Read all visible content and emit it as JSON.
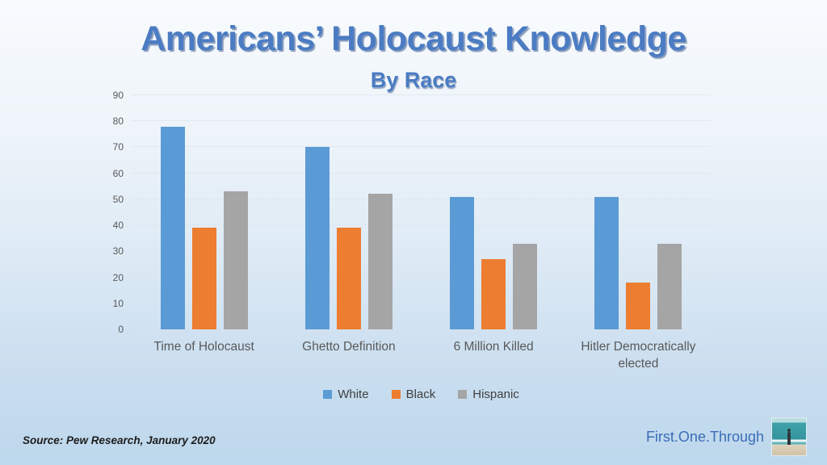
{
  "slide": {
    "title": "Americans’ Holocaust Knowledge",
    "subtitle": "By Race",
    "source": "Source: Pew Research, January 2020",
    "watermark": "First.One.Through"
  },
  "colors": {
    "title_blue": "#4b7cc3",
    "axis_text": "#595959",
    "legend_text": "#404040",
    "watermark_blue": "#3b6db8",
    "gridline": "#dde6ee"
  },
  "chart_data": {
    "type": "bar",
    "title": "Americans’ Holocaust Knowledge By Race",
    "categories": [
      "Time of Holocaust",
      "Ghetto Definition",
      "6 Million Killed",
      "Hitler Democratically elected"
    ],
    "series": [
      {
        "name": "White",
        "color": "#5b9bd5",
        "values": [
          78,
          70,
          51,
          51
        ]
      },
      {
        "name": "Black",
        "color": "#ed7d31",
        "values": [
          39,
          39,
          27,
          18
        ]
      },
      {
        "name": "Hispanic",
        "color": "#a5a5a5",
        "values": [
          53,
          52,
          33,
          33
        ]
      }
    ],
    "xlabel": "",
    "ylabel": "",
    "ylim": [
      0,
      90
    ],
    "ytick_step": 10,
    "grid": true,
    "legend_position": "bottom"
  }
}
